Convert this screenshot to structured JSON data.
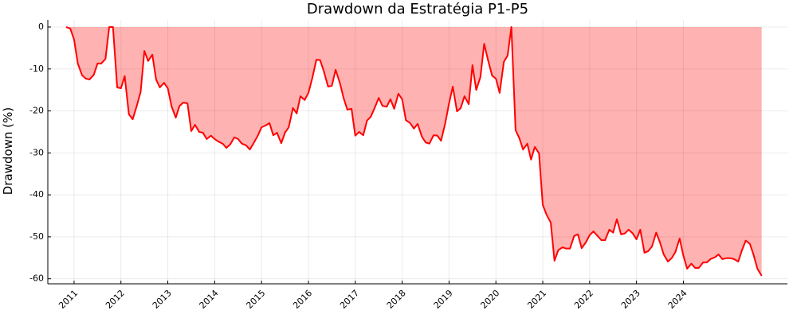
{
  "chart_data": {
    "type": "area",
    "title": "Drawdown da Estratégia P1-P5",
    "ylabel": "Drawdown (%)",
    "x": [
      2010.83,
      2010.92,
      2011.0,
      2011.08,
      2011.17,
      2011.25,
      2011.33,
      2011.42,
      2011.5,
      2011.58,
      2011.67,
      2011.75,
      2011.83,
      2011.92,
      2012.0,
      2012.08,
      2012.17,
      2012.25,
      2012.33,
      2012.42,
      2012.5,
      2012.58,
      2012.67,
      2012.75,
      2012.83,
      2012.92,
      2013.0,
      2013.08,
      2013.17,
      2013.25,
      2013.33,
      2013.42,
      2013.5,
      2013.58,
      2013.67,
      2013.75,
      2013.83,
      2013.92,
      2014.0,
      2014.08,
      2014.17,
      2014.25,
      2014.33,
      2014.42,
      2014.5,
      2014.58,
      2014.67,
      2014.75,
      2014.83,
      2014.92,
      2015.0,
      2015.08,
      2015.17,
      2015.25,
      2015.33,
      2015.42,
      2015.5,
      2015.58,
      2015.67,
      2015.75,
      2015.83,
      2015.92,
      2016.0,
      2016.08,
      2016.17,
      2016.25,
      2016.33,
      2016.42,
      2016.5,
      2016.58,
      2016.67,
      2016.75,
      2016.83,
      2016.92,
      2017.0,
      2017.08,
      2017.17,
      2017.25,
      2017.33,
      2017.42,
      2017.5,
      2017.58,
      2017.67,
      2017.75,
      2017.83,
      2017.92,
      2018.0,
      2018.08,
      2018.17,
      2018.25,
      2018.33,
      2018.42,
      2018.5,
      2018.58,
      2018.67,
      2018.75,
      2018.83,
      2018.92,
      2019.0,
      2019.08,
      2019.17,
      2019.25,
      2019.33,
      2019.42,
      2019.5,
      2019.58,
      2019.67,
      2019.75,
      2019.83,
      2019.92,
      2020.0,
      2020.08,
      2020.17,
      2020.25,
      2020.33,
      2020.42,
      2020.5,
      2020.58,
      2020.67,
      2020.75,
      2020.83,
      2020.92,
      2021.0,
      2021.08,
      2021.17,
      2021.25,
      2021.33,
      2021.42,
      2021.5,
      2021.58,
      2021.67,
      2021.75,
      2021.83,
      2021.92,
      2022.0,
      2022.08,
      2022.17,
      2022.25,
      2022.33,
      2022.42,
      2022.5,
      2022.58,
      2022.67,
      2022.75,
      2022.83,
      2022.92,
      2023.0,
      2023.08,
      2023.17,
      2023.25,
      2023.33,
      2023.42,
      2023.5,
      2023.58,
      2023.67,
      2023.75,
      2023.83,
      2023.92,
      2024.0,
      2024.08,
      2024.17,
      2024.25,
      2024.33,
      2024.42,
      2024.5,
      2024.58,
      2024.67,
      2024.75,
      2024.83,
      2024.92,
      2025.0,
      2025.08,
      2025.17,
      2025.25,
      2025.33,
      2025.42,
      2025.5,
      2025.58,
      2025.67
    ],
    "values": [
      0,
      -0.4,
      -3,
      -8.7,
      -11.5,
      -12.3,
      -12.5,
      -11.4,
      -8.7,
      -8.7,
      -7.6,
      0,
      0,
      -14.4,
      -14.6,
      -11.7,
      -20.8,
      -22,
      -19.1,
      -15.5,
      -5.7,
      -8.1,
      -6.6,
      -12.5,
      -14.4,
      -13.3,
      -14.6,
      -18.9,
      -21.6,
      -18.8,
      -18,
      -18.2,
      -24.8,
      -23.3,
      -25,
      -25.2,
      -26.7,
      -25.9,
      -26.7,
      -27.3,
      -27.8,
      -28.8,
      -28,
      -26.3,
      -26.7,
      -27.8,
      -28.2,
      -29.2,
      -27.7,
      -25.9,
      -23.9,
      -23.5,
      -22.9,
      -25.8,
      -25.2,
      -27.7,
      -25.2,
      -23.9,
      -19.3,
      -20.6,
      -16.5,
      -17.4,
      -15.7,
      -12.3,
      -7.8,
      -7.9,
      -10.6,
      -14.2,
      -14,
      -10.2,
      -13.3,
      -16.9,
      -19.7,
      -19.5,
      -25.9,
      -25,
      -25.8,
      -22.3,
      -21.4,
      -19.1,
      -16.9,
      -18.8,
      -19,
      -17.2,
      -19.5,
      -15.9,
      -17.2,
      -22.2,
      -22.9,
      -24.2,
      -23.1,
      -26.1,
      -27.5,
      -27.8,
      -25.8,
      -25.9,
      -27.1,
      -22.9,
      -18.2,
      -14.2,
      -20.1,
      -19.3,
      -16.5,
      -18.4,
      -9.1,
      -15,
      -11.9,
      -4,
      -7.8,
      -11.6,
      -12.3,
      -15.7,
      -8.3,
      -6.8,
      0,
      -24.6,
      -26.5,
      -29.2,
      -27.8,
      -31.6,
      -28.6,
      -30.1,
      -42.4,
      -44.7,
      -46.6,
      -55.7,
      -53.2,
      -52.5,
      -52.8,
      -52.8,
      -49.8,
      -49.4,
      -52.7,
      -51.3,
      -49.6,
      -48.7,
      -49.8,
      -50.8,
      -50.8,
      -48.3,
      -49,
      -45.8,
      -49.4,
      -49.2,
      -48.3,
      -49.2,
      -50.6,
      -48.3,
      -53.8,
      -53.4,
      -52.3,
      -49,
      -51.3,
      -54.2,
      -55.9,
      -55.1,
      -53.6,
      -50.4,
      -54.5,
      -57.6,
      -56.4,
      -57.4,
      -57.4,
      -56.1,
      -56.1,
      -55.3,
      -54.9,
      -54.2,
      -55.3,
      -55.1,
      -55.1,
      -55.3,
      -55.9,
      -53.2,
      -50.9,
      -51.7,
      -54.4,
      -57.6,
      -59.3
    ],
    "color": "#ff0000",
    "fill_opacity": 0.3,
    "xlim": [
      2010.44,
      2026.22
    ],
    "xticks": [
      2011,
      2012,
      2013,
      2014,
      2015,
      2016,
      2017,
      2018,
      2019,
      2020,
      2021,
      2022,
      2023,
      2024
    ],
    "ylim": [
      -61.2,
      1.7
    ],
    "yticks": [
      0,
      -10,
      -20,
      -30,
      -40,
      -50,
      -60
    ],
    "grid": true
  }
}
